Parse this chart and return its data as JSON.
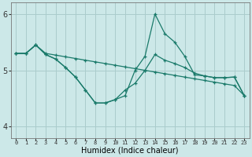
{
  "x": [
    0,
    1,
    2,
    3,
    4,
    5,
    6,
    7,
    8,
    9,
    10,
    11,
    12,
    13,
    14,
    15,
    16,
    17,
    18,
    19,
    20,
    21,
    22,
    23
  ],
  "line1": [
    5.3,
    5.3,
    5.45,
    5.3,
    5.27,
    5.24,
    5.21,
    5.18,
    5.15,
    5.12,
    5.09,
    5.06,
    5.03,
    5.0,
    4.97,
    4.94,
    4.91,
    4.88,
    4.85,
    4.82,
    4.79,
    4.76,
    4.73,
    4.55
  ],
  "line2": [
    5.3,
    5.3,
    5.45,
    5.28,
    5.2,
    5.05,
    4.88,
    4.65,
    4.42,
    4.42,
    4.48,
    4.55,
    5.0,
    5.25,
    6.0,
    5.65,
    5.5,
    5.25,
    4.92,
    4.9,
    4.87,
    4.87,
    4.88,
    4.55
  ],
  "line3": [
    5.3,
    5.3,
    5.45,
    5.28,
    5.2,
    5.05,
    4.88,
    4.65,
    4.42,
    4.42,
    4.48,
    4.65,
    4.77,
    5.0,
    5.28,
    5.18,
    5.12,
    5.05,
    4.95,
    4.9,
    4.87,
    4.87,
    4.88,
    4.55
  ],
  "background": "#cce8e8",
  "grid_color": "#aacccc",
  "line_color": "#1a7a6a",
  "xlabel": "Humidex (Indice chaleur)",
  "ylim": [
    3.8,
    6.2
  ],
  "xlim": [
    -0.5,
    23.5
  ],
  "yticks": [
    4,
    5,
    6
  ],
  "xtick_labels": [
    "0",
    "1",
    "2",
    "3",
    "4",
    "5",
    "6",
    "7",
    "8",
    "9",
    "10",
    "11",
    "12",
    "13",
    "14",
    "15",
    "16",
    "17",
    "18",
    "19",
    "20",
    "21",
    "22",
    "23"
  ]
}
